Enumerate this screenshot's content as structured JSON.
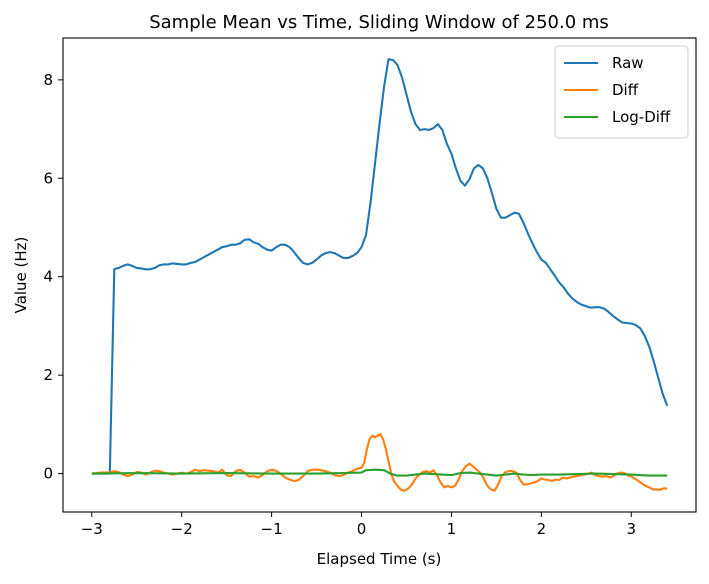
{
  "chart_data": {
    "type": "line",
    "title": "Sample Mean vs Time, Sliding Window of 250.0 ms",
    "xlabel": "Elapsed Time (s)",
    "ylabel": "Value (Hz)",
    "xlim": [
      -3.32,
      3.72
    ],
    "ylim": [
      -0.78,
      8.85
    ],
    "xticks": [
      -3,
      -2,
      -1,
      0,
      1,
      2,
      3
    ],
    "yticks": [
      0,
      2,
      4,
      6,
      8
    ],
    "legend_position": "top-right",
    "series": [
      {
        "name": "Raw",
        "color": "#1f77b4",
        "points": [
          [
            -3.0,
            0.0
          ],
          [
            -2.8,
            0.0
          ],
          [
            -2.75,
            4.15
          ],
          [
            -2.7,
            4.18
          ],
          [
            -2.65,
            4.22
          ],
          [
            -2.6,
            4.25
          ],
          [
            -2.55,
            4.22
          ],
          [
            -2.5,
            4.18
          ],
          [
            -2.45,
            4.17
          ],
          [
            -2.4,
            4.15
          ],
          [
            -2.35,
            4.15
          ],
          [
            -2.3,
            4.18
          ],
          [
            -2.25,
            4.23
          ],
          [
            -2.2,
            4.25
          ],
          [
            -2.15,
            4.25
          ],
          [
            -2.1,
            4.27
          ],
          [
            -2.05,
            4.26
          ],
          [
            -2.0,
            4.25
          ],
          [
            -1.95,
            4.25
          ],
          [
            -1.9,
            4.28
          ],
          [
            -1.85,
            4.3
          ],
          [
            -1.8,
            4.35
          ],
          [
            -1.75,
            4.4
          ],
          [
            -1.7,
            4.45
          ],
          [
            -1.65,
            4.5
          ],
          [
            -1.6,
            4.55
          ],
          [
            -1.55,
            4.6
          ],
          [
            -1.5,
            4.62
          ],
          [
            -1.45,
            4.65
          ],
          [
            -1.4,
            4.65
          ],
          [
            -1.35,
            4.68
          ],
          [
            -1.3,
            4.75
          ],
          [
            -1.25,
            4.76
          ],
          [
            -1.2,
            4.7
          ],
          [
            -1.15,
            4.67
          ],
          [
            -1.1,
            4.6
          ],
          [
            -1.05,
            4.55
          ],
          [
            -1.0,
            4.53
          ],
          [
            -0.95,
            4.6
          ],
          [
            -0.9,
            4.65
          ],
          [
            -0.85,
            4.65
          ],
          [
            -0.8,
            4.6
          ],
          [
            -0.75,
            4.5
          ],
          [
            -0.7,
            4.38
          ],
          [
            -0.65,
            4.28
          ],
          [
            -0.6,
            4.25
          ],
          [
            -0.55,
            4.28
          ],
          [
            -0.5,
            4.35
          ],
          [
            -0.45,
            4.43
          ],
          [
            -0.4,
            4.48
          ],
          [
            -0.35,
            4.5
          ],
          [
            -0.3,
            4.48
          ],
          [
            -0.25,
            4.43
          ],
          [
            -0.2,
            4.38
          ],
          [
            -0.15,
            4.38
          ],
          [
            -0.1,
            4.42
          ],
          [
            -0.05,
            4.48
          ],
          [
            0.0,
            4.6
          ],
          [
            0.05,
            4.85
          ],
          [
            0.1,
            5.5
          ],
          [
            0.15,
            6.3
          ],
          [
            0.2,
            7.1
          ],
          [
            0.25,
            7.85
          ],
          [
            0.3,
            8.42
          ],
          [
            0.35,
            8.4
          ],
          [
            0.4,
            8.3
          ],
          [
            0.45,
            8.05
          ],
          [
            0.5,
            7.7
          ],
          [
            0.55,
            7.35
          ],
          [
            0.6,
            7.1
          ],
          [
            0.65,
            6.98
          ],
          [
            0.7,
            7.0
          ],
          [
            0.75,
            6.98
          ],
          [
            0.8,
            7.02
          ],
          [
            0.85,
            7.1
          ],
          [
            0.9,
            6.98
          ],
          [
            0.95,
            6.7
          ],
          [
            1.0,
            6.5
          ],
          [
            1.05,
            6.2
          ],
          [
            1.1,
            5.95
          ],
          [
            1.15,
            5.85
          ],
          [
            1.2,
            5.98
          ],
          [
            1.25,
            6.2
          ],
          [
            1.3,
            6.27
          ],
          [
            1.35,
            6.2
          ],
          [
            1.4,
            6.0
          ],
          [
            1.45,
            5.7
          ],
          [
            1.5,
            5.38
          ],
          [
            1.55,
            5.2
          ],
          [
            1.6,
            5.2
          ],
          [
            1.65,
            5.25
          ],
          [
            1.7,
            5.3
          ],
          [
            1.75,
            5.28
          ],
          [
            1.8,
            5.1
          ],
          [
            1.85,
            4.88
          ],
          [
            1.9,
            4.68
          ],
          [
            1.95,
            4.5
          ],
          [
            2.0,
            4.35
          ],
          [
            2.05,
            4.28
          ],
          [
            2.1,
            4.15
          ],
          [
            2.15,
            4.02
          ],
          [
            2.2,
            3.88
          ],
          [
            2.25,
            3.78
          ],
          [
            2.3,
            3.65
          ],
          [
            2.35,
            3.55
          ],
          [
            2.4,
            3.48
          ],
          [
            2.45,
            3.43
          ],
          [
            2.5,
            3.4
          ],
          [
            2.55,
            3.37
          ],
          [
            2.6,
            3.38
          ],
          [
            2.65,
            3.38
          ],
          [
            2.7,
            3.35
          ],
          [
            2.75,
            3.28
          ],
          [
            2.8,
            3.2
          ],
          [
            2.85,
            3.13
          ],
          [
            2.9,
            3.07
          ],
          [
            2.95,
            3.06
          ],
          [
            3.0,
            3.05
          ],
          [
            3.05,
            3.02
          ],
          [
            3.1,
            2.95
          ],
          [
            3.15,
            2.8
          ],
          [
            3.2,
            2.58
          ],
          [
            3.25,
            2.28
          ],
          [
            3.3,
            1.95
          ],
          [
            3.35,
            1.62
          ],
          [
            3.4,
            1.38
          ]
        ]
      },
      {
        "name": "Diff",
        "color": "#ff7f0e",
        "points": [
          [
            -3.0,
            0.0
          ],
          [
            -2.9,
            0.02
          ],
          [
            -2.8,
            0.02
          ],
          [
            -2.75,
            0.05
          ],
          [
            -2.7,
            0.03
          ],
          [
            -2.65,
            -0.02
          ],
          [
            -2.6,
            -0.05
          ],
          [
            -2.55,
            -0.02
          ],
          [
            -2.5,
            0.03
          ],
          [
            -2.45,
            0.02
          ],
          [
            -2.4,
            -0.02
          ],
          [
            -2.35,
            0.02
          ],
          [
            -2.3,
            0.06
          ],
          [
            -2.25,
            0.05
          ],
          [
            -2.2,
            0.02
          ],
          [
            -2.15,
            0.0
          ],
          [
            -2.1,
            -0.02
          ],
          [
            -2.05,
            0.0
          ],
          [
            -2.0,
            0.02
          ],
          [
            -1.95,
            0.0
          ],
          [
            -1.9,
            0.03
          ],
          [
            -1.85,
            0.08
          ],
          [
            -1.8,
            0.05
          ],
          [
            -1.75,
            0.07
          ],
          [
            -1.7,
            0.06
          ],
          [
            -1.65,
            0.05
          ],
          [
            -1.6,
            0.02
          ],
          [
            -1.55,
            0.08
          ],
          [
            -1.5,
            -0.03
          ],
          [
            -1.45,
            -0.05
          ],
          [
            -1.4,
            0.05
          ],
          [
            -1.35,
            0.08
          ],
          [
            -1.3,
            0.02
          ],
          [
            -1.25,
            -0.06
          ],
          [
            -1.2,
            -0.05
          ],
          [
            -1.15,
            -0.08
          ],
          [
            -1.1,
            -0.03
          ],
          [
            -1.05,
            0.05
          ],
          [
            -1.0,
            0.08
          ],
          [
            -0.95,
            0.06
          ],
          [
            -0.9,
            0.0
          ],
          [
            -0.85,
            -0.08
          ],
          [
            -0.8,
            -0.12
          ],
          [
            -0.75,
            -0.15
          ],
          [
            -0.7,
            -0.13
          ],
          [
            -0.65,
            -0.05
          ],
          [
            -0.6,
            0.05
          ],
          [
            -0.55,
            0.08
          ],
          [
            -0.5,
            0.08
          ],
          [
            -0.45,
            0.07
          ],
          [
            -0.4,
            0.05
          ],
          [
            -0.35,
            0.02
          ],
          [
            -0.3,
            -0.03
          ],
          [
            -0.25,
            -0.05
          ],
          [
            -0.2,
            -0.03
          ],
          [
            -0.15,
            0.02
          ],
          [
            -0.1,
            0.05
          ],
          [
            -0.05,
            0.1
          ],
          [
            0.0,
            0.12
          ],
          [
            0.03,
            0.22
          ],
          [
            0.06,
            0.5
          ],
          [
            0.09,
            0.7
          ],
          [
            0.12,
            0.77
          ],
          [
            0.15,
            0.74
          ],
          [
            0.18,
            0.77
          ],
          [
            0.21,
            0.8
          ],
          [
            0.24,
            0.7
          ],
          [
            0.27,
            0.5
          ],
          [
            0.3,
            0.25
          ],
          [
            0.33,
            0.0
          ],
          [
            0.36,
            -0.15
          ],
          [
            0.4,
            -0.25
          ],
          [
            0.44,
            -0.33
          ],
          [
            0.48,
            -0.35
          ],
          [
            0.52,
            -0.3
          ],
          [
            0.56,
            -0.22
          ],
          [
            0.6,
            -0.1
          ],
          [
            0.64,
            -0.02
          ],
          [
            0.68,
            0.03
          ],
          [
            0.72,
            0.05
          ],
          [
            0.76,
            0.02
          ],
          [
            0.8,
            0.07
          ],
          [
            0.84,
            -0.03
          ],
          [
            0.88,
            -0.18
          ],
          [
            0.92,
            -0.28
          ],
          [
            0.96,
            -0.25
          ],
          [
            1.0,
            -0.28
          ],
          [
            1.04,
            -0.25
          ],
          [
            1.08,
            -0.12
          ],
          [
            1.12,
            0.05
          ],
          [
            1.16,
            0.15
          ],
          [
            1.2,
            0.2
          ],
          [
            1.24,
            0.15
          ],
          [
            1.28,
            0.08
          ],
          [
            1.32,
            0.02
          ],
          [
            1.36,
            -0.1
          ],
          [
            1.4,
            -0.25
          ],
          [
            1.44,
            -0.32
          ],
          [
            1.48,
            -0.35
          ],
          [
            1.52,
            -0.22
          ],
          [
            1.56,
            -0.05
          ],
          [
            1.6,
            0.03
          ],
          [
            1.64,
            0.05
          ],
          [
            1.68,
            0.05
          ],
          [
            1.72,
            0.02
          ],
          [
            1.76,
            -0.12
          ],
          [
            1.8,
            -0.22
          ],
          [
            1.84,
            -0.22
          ],
          [
            1.88,
            -0.2
          ],
          [
            1.92,
            -0.18
          ],
          [
            1.96,
            -0.15
          ],
          [
            2.0,
            -0.1
          ],
          [
            2.04,
            -0.12
          ],
          [
            2.08,
            -0.13
          ],
          [
            2.12,
            -0.15
          ],
          [
            2.16,
            -0.12
          ],
          [
            2.2,
            -0.13
          ],
          [
            2.24,
            -0.08
          ],
          [
            2.28,
            -0.1
          ],
          [
            2.32,
            -0.08
          ],
          [
            2.36,
            -0.06
          ],
          [
            2.4,
            -0.05
          ],
          [
            2.44,
            -0.03
          ],
          [
            2.48,
            -0.02
          ],
          [
            2.52,
            0.0
          ],
          [
            2.56,
            0.02
          ],
          [
            2.6,
            -0.03
          ],
          [
            2.64,
            -0.05
          ],
          [
            2.68,
            -0.06
          ],
          [
            2.72,
            -0.05
          ],
          [
            2.76,
            -0.08
          ],
          [
            2.8,
            -0.05
          ],
          [
            2.84,
            0.0
          ],
          [
            2.88,
            0.02
          ],
          [
            2.92,
            0.01
          ],
          [
            2.96,
            -0.03
          ],
          [
            3.0,
            -0.06
          ],
          [
            3.04,
            -0.1
          ],
          [
            3.08,
            -0.15
          ],
          [
            3.12,
            -0.2
          ],
          [
            3.16,
            -0.25
          ],
          [
            3.2,
            -0.28
          ],
          [
            3.24,
            -0.32
          ],
          [
            3.28,
            -0.32
          ],
          [
            3.32,
            -0.33
          ],
          [
            3.36,
            -0.3
          ],
          [
            3.4,
            -0.3
          ]
        ]
      },
      {
        "name": "Log-Diff",
        "color": "#2ca02c",
        "points": [
          [
            -3.0,
            0.0
          ],
          [
            -2.5,
            0.01
          ],
          [
            -2.0,
            0.0
          ],
          [
            -1.5,
            0.01
          ],
          [
            -1.0,
            0.0
          ],
          [
            -0.5,
            0.0
          ],
          [
            -0.2,
            0.01
          ],
          [
            0.0,
            0.02
          ],
          [
            0.05,
            0.07
          ],
          [
            0.15,
            0.08
          ],
          [
            0.25,
            0.07
          ],
          [
            0.32,
            0.0
          ],
          [
            0.4,
            -0.04
          ],
          [
            0.5,
            -0.04
          ],
          [
            0.6,
            -0.02
          ],
          [
            0.7,
            0.0
          ],
          [
            0.8,
            -0.01
          ],
          [
            0.9,
            -0.02
          ],
          [
            1.0,
            -0.03
          ],
          [
            1.1,
            0.01
          ],
          [
            1.2,
            0.02
          ],
          [
            1.3,
            0.0
          ],
          [
            1.4,
            -0.02
          ],
          [
            1.5,
            -0.04
          ],
          [
            1.6,
            -0.02
          ],
          [
            1.7,
            0.0
          ],
          [
            1.8,
            -0.02
          ],
          [
            1.9,
            -0.03
          ],
          [
            2.0,
            -0.02
          ],
          [
            2.2,
            -0.02
          ],
          [
            2.4,
            -0.01
          ],
          [
            2.6,
            0.0
          ],
          [
            2.8,
            -0.01
          ],
          [
            3.0,
            -0.02
          ],
          [
            3.2,
            -0.04
          ],
          [
            3.4,
            -0.04
          ]
        ]
      }
    ]
  }
}
